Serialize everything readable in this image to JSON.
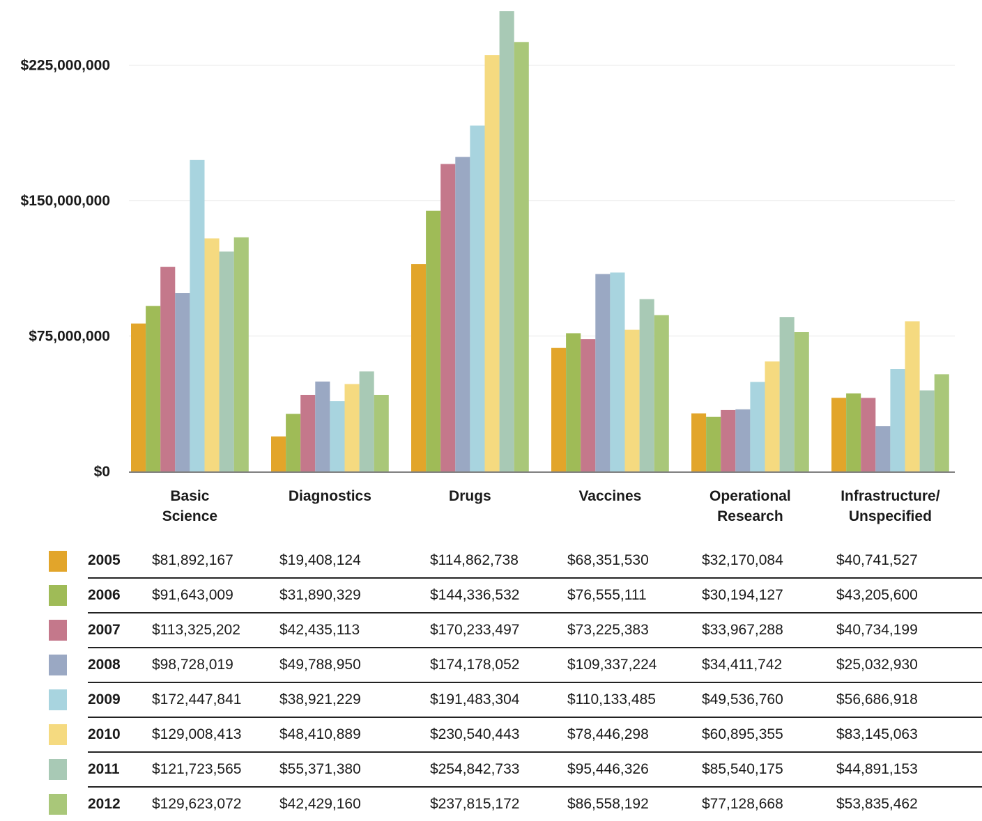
{
  "chart_data": {
    "type": "bar",
    "title": "",
    "xlabel": "",
    "ylabel": "",
    "ylim": [
      0,
      255000000
    ],
    "yticks": [
      0,
      75000000,
      150000000,
      225000000
    ],
    "ytick_labels": [
      "$0",
      "$75,000,000",
      "$150,000,000",
      "$225,000,000"
    ],
    "grid": true,
    "legend": "table-below",
    "categories": [
      "Basic\nScience",
      "Diagnostics",
      "Drugs",
      "Vaccines",
      "Operational\nResearch",
      "Infrastructure/\nUnspecified"
    ],
    "series": [
      {
        "name": "2005",
        "color": "#e2a52a",
        "values": [
          81892167,
          19408124,
          114862738,
          68351530,
          32170084,
          40741527
        ],
        "labels": [
          "$81,892,167",
          "$19,408,124",
          "$114,862,738",
          "$68,351,530",
          "$32,170,084",
          "$40,741,527"
        ]
      },
      {
        "name": "2006",
        "color": "#9fbb57",
        "values": [
          91643009,
          31890329,
          144336532,
          76555111,
          30194127,
          43205600
        ],
        "labels": [
          "$91,643,009",
          "$31,890,329",
          "$144,336,532",
          "$76,555,111",
          "$30,194,127",
          "$43,205,600"
        ]
      },
      {
        "name": "2007",
        "color": "#c4788b",
        "values": [
          113325202,
          42435113,
          170233497,
          73225383,
          33967288,
          40734199
        ],
        "labels": [
          "$113,325,202",
          "$42,435,113",
          "$170,233,497",
          "$73,225,383",
          "$33,967,288",
          "$40,734,199"
        ]
      },
      {
        "name": "2008",
        "color": "#9aa8c3",
        "values": [
          98728019,
          49788950,
          174178052,
          109337224,
          34411742,
          25032930
        ],
        "labels": [
          "$98,728,019",
          "$49,788,950",
          "$174,178,052",
          "$109,337,224",
          "$34,411,742",
          "$25,032,930"
        ]
      },
      {
        "name": "2009",
        "color": "#a8d4df",
        "values": [
          172447841,
          38921229,
          191483304,
          110133485,
          49536760,
          56686918
        ],
        "labels": [
          "$172,447,841",
          "$38,921,229",
          "$191,483,304",
          "$110,133,485",
          "$49,536,760",
          "$56,686,918"
        ]
      },
      {
        "name": "2010",
        "color": "#f5da80",
        "values": [
          129008413,
          48410889,
          230540443,
          78446298,
          60895355,
          83145063
        ],
        "labels": [
          "$129,008,413",
          "$48,410,889",
          "$230,540,443",
          "$78,446,298",
          "$60,895,355",
          "$83,145,063"
        ]
      },
      {
        "name": "2011",
        "color": "#a8c9b5",
        "values": [
          121723565,
          55371380,
          254842733,
          95446326,
          85540175,
          44891153
        ],
        "labels": [
          "$121,723,565",
          "$55,371,380",
          "$254,842,733",
          "$95,446,326",
          "$85,540,175",
          "$44,891,153"
        ]
      },
      {
        "name": "2012",
        "color": "#a9c779",
        "values": [
          129623072,
          42429160,
          237815172,
          86558192,
          77128668,
          53835462
        ],
        "labels": [
          "$129,623,072",
          "$42,429,160",
          "$237,815,172",
          "$86,558,192",
          "$77,128,668",
          "$53,835,462"
        ]
      }
    ]
  }
}
